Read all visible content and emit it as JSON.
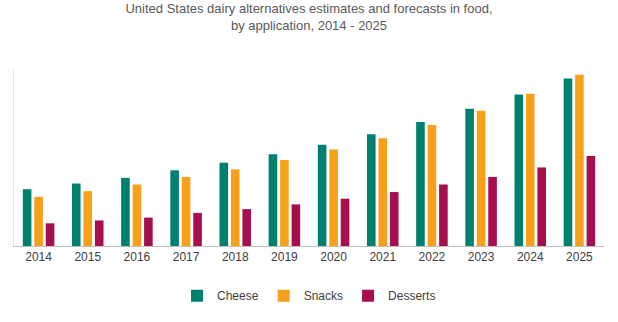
{
  "chart_data": {
    "type": "bar",
    "title": "United States dairy alternatives estimates and forecasts in food,\nby application, 2014 - 2025",
    "categories": [
      "2014",
      "2015",
      "2016",
      "2017",
      "2018",
      "2019",
      "2020",
      "2021",
      "2022",
      "2023",
      "2024",
      "2025"
    ],
    "series": [
      {
        "name": "Cheese",
        "color": "#00806f",
        "values": [
          60,
          66,
          72,
          80,
          88,
          97,
          107,
          118,
          131,
          145,
          160,
          177
        ]
      },
      {
        "name": "Snacks",
        "color": "#f7a11a",
        "values": [
          52,
          58,
          65,
          73,
          81,
          91,
          102,
          114,
          128,
          143,
          161,
          181
        ]
      },
      {
        "name": "Desserts",
        "color": "#a50f4f",
        "values": [
          24,
          27,
          30,
          35,
          39,
          44,
          50,
          57,
          65,
          73,
          83,
          95
        ]
      }
    ],
    "ylim": [
      0,
      186
    ],
    "yticks": [
      0
    ],
    "grid": false,
    "legend": "bottom",
    "tick_labels": "x"
  }
}
